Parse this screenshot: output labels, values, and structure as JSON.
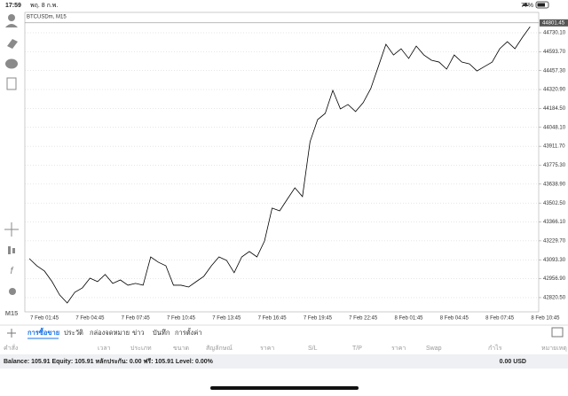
{
  "status_bar": {
    "time": "17:59",
    "date": "พฤ. 8 ก.พ.",
    "battery": "77%"
  },
  "sidebar": {
    "timeframe": "M15"
  },
  "chart_data": {
    "type": "line",
    "title": "BTCUSDm, M15",
    "categories": [
      null,
      null,
      "7 Feb 01:45",
      null,
      null,
      null,
      null,
      null,
      "7 Feb 04:45",
      null,
      null,
      null,
      null,
      null,
      "7 Feb 07:45",
      null,
      null,
      null,
      null,
      null,
      "7 Feb 10:45",
      null,
      null,
      null,
      null,
      null,
      "7 Feb 13:45",
      null,
      null,
      null,
      null,
      null,
      "7 Feb 16:45",
      null,
      null,
      null,
      null,
      null,
      "7 Feb 19:45",
      null,
      null,
      null,
      null,
      null,
      "7 Feb 22:45",
      null,
      null,
      null,
      null,
      null,
      "8 Feb 01:45",
      null,
      null,
      null,
      null,
      null,
      "8 Feb 04:45",
      null,
      null,
      null,
      null,
      null,
      "8 Feb 07:45",
      null,
      null,
      null,
      null,
      null,
      "8 Feb 10:45"
    ],
    "series": [
      {
        "name": "BTCUSDm",
        "color": "#000000",
        "values": [
          43102,
          43050,
          43012,
          42936,
          42840,
          42782,
          42859,
          42891,
          42961,
          42936,
          42987,
          42923,
          42948,
          42910,
          42923,
          42910,
          43114,
          43076,
          43050,
          42910,
          42910,
          42897,
          42936,
          42974,
          43050,
          43114,
          43089,
          43000,
          43114,
          43153,
          43114,
          43229,
          43466,
          43446,
          43530,
          43612,
          43549,
          43945,
          44104,
          44149,
          44315,
          44181,
          44213,
          44162,
          44226,
          44328,
          44487,
          44647,
          44570,
          44615,
          44545,
          44634,
          44570,
          44532,
          44519,
          44468,
          44570,
          44519,
          44506,
          44455,
          44487,
          44519,
          44615,
          44666,
          44615,
          44698,
          44774,
          null,
          null
        ]
      }
    ],
    "ylim": [
      42718,
      44877
    ],
    "yticks": [
      {
        "value": 42820.5,
        "label": "42820.50"
      },
      {
        "value": 42956.9,
        "label": "42956.90"
      },
      {
        "value": 43093.3,
        "label": "43093.30"
      },
      {
        "value": 43229.7,
        "label": "43229.70"
      },
      {
        "value": 43366.1,
        "label": "43366.10"
      },
      {
        "value": 43502.5,
        "label": "43502.50"
      },
      {
        "value": 43638.9,
        "label": "43638.90"
      },
      {
        "value": 43775.3,
        "label": "43775.30"
      },
      {
        "value": 43911.7,
        "label": "43911.70"
      },
      {
        "value": 44048.1,
        "label": "44048.10"
      },
      {
        "value": 44184.5,
        "label": "44184.50"
      },
      {
        "value": 44320.9,
        "label": "44320.90"
      },
      {
        "value": 44457.3,
        "label": "44457.30"
      },
      {
        "value": 44593.7,
        "label": "44593.70"
      },
      {
        "value": 44730.1,
        "label": "44730.10"
      }
    ],
    "current_price": {
      "value": 44801.45,
      "label": "44801.45"
    },
    "grid": true
  },
  "tabs": [
    "การซื้อขาย",
    "ประวัติ",
    "กล่องจดหมาย",
    "ข่าว",
    "บันทึก",
    "การตั้งค่า"
  ],
  "table_headers": [
    "คำสั่ง",
    "เวลา",
    "ประเภท",
    "ขนาด",
    "สัญลักษณ์",
    "ราคา",
    "S/L",
    "T/P",
    "ราคา",
    "Swap",
    "กำไร",
    "หมายเหตุ"
  ],
  "footer": {
    "summary": "Balance: 105.91 Equity: 105.91 หลักประกัน: 0.00 ฟรี: 105.91 Level: 0.00%",
    "profit": "0.00 USD"
  }
}
